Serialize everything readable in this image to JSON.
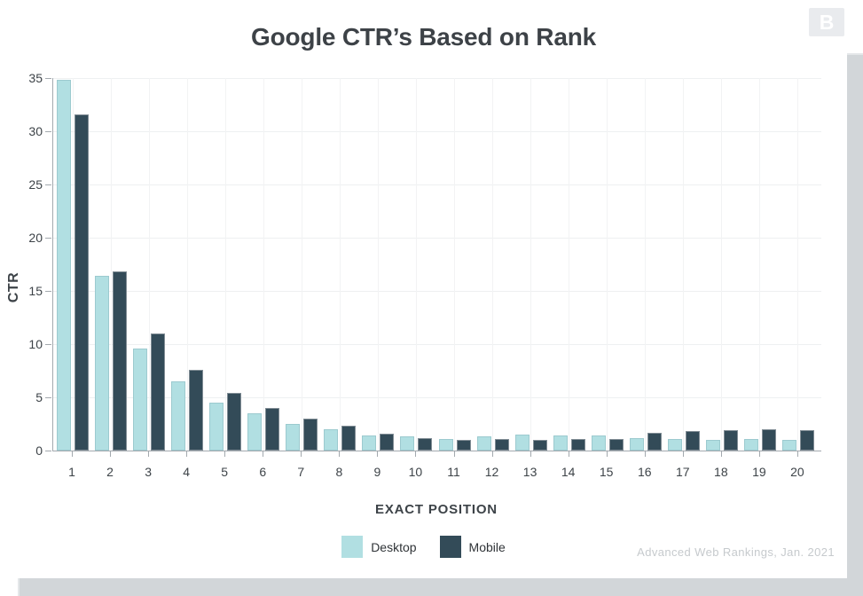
{
  "page": {
    "title": "Google CTR’s Based on Rank",
    "logo_letter": "B",
    "attribution": "Advanced Web Rankings, Jan. 2021"
  },
  "chart_data": {
    "type": "bar",
    "title": "Google CTR’s Based on Rank",
    "xlabel": "EXACT POSITION",
    "ylabel": "CTR",
    "categories": [
      "1",
      "2",
      "3",
      "4",
      "5",
      "6",
      "7",
      "8",
      "9",
      "10",
      "11",
      "12",
      "13",
      "14",
      "15",
      "16",
      "17",
      "18",
      "19",
      "20"
    ],
    "series": [
      {
        "name": "Desktop",
        "color": "#b1dfe2",
        "values": [
          34.8,
          16.4,
          9.6,
          6.5,
          4.5,
          3.5,
          2.5,
          2.0,
          1.4,
          1.3,
          1.1,
          1.3,
          1.5,
          1.4,
          1.4,
          1.2,
          1.1,
          1.0,
          1.1,
          1.0
        ]
      },
      {
        "name": "Mobile",
        "color": "#334b58",
        "values": [
          31.6,
          16.8,
          11.0,
          7.6,
          5.4,
          4.0,
          3.0,
          2.3,
          1.6,
          1.2,
          1.0,
          1.1,
          1.0,
          1.1,
          1.1,
          1.7,
          1.8,
          1.9,
          2.0,
          1.9
        ]
      }
    ],
    "ylim": [
      0,
      35
    ],
    "ytick_step": 5,
    "grid": true,
    "legend_position": "bottom",
    "source_note": "Advanced Web Rankings, Jan. 2021"
  },
  "colors": {
    "desktop": "#b1dfe2",
    "mobile": "#334b58",
    "axis": "#a3a9ae",
    "grid_h": "#eef0f1",
    "grid_v": "#f2f3f4",
    "text_dark": "#3d4348",
    "attribution": "#c6cacd",
    "backdrop": "#d2d6d9",
    "logo_bg": "#e9ebee"
  }
}
